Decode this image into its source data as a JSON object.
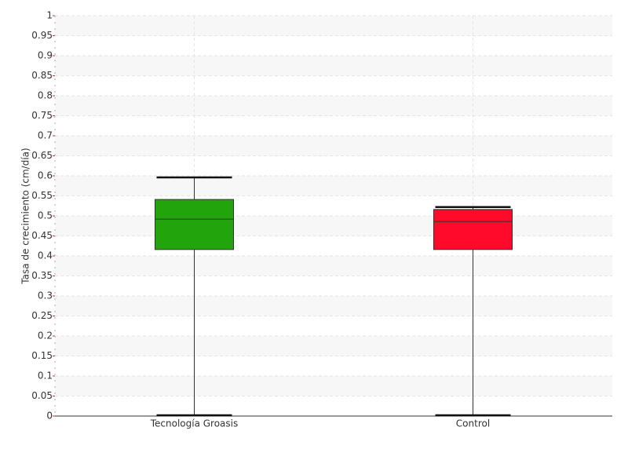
{
  "chart_data": {
    "type": "box",
    "ylabel": "Tasa de crecimiento (cm/día)",
    "categories": [
      "Tecnología Groasis",
      "Control"
    ],
    "boxes": [
      {
        "min": 0,
        "q1": 0.416,
        "median": 0.492,
        "q3": 0.541,
        "max": 0.596,
        "color": "#22a50c"
      },
      {
        "min": 0,
        "q1": 0.416,
        "median": 0.486,
        "q3": 0.516,
        "max": 0.522,
        "color": "#ff0a2a"
      }
    ],
    "ylim": [
      0,
      1
    ],
    "yticks": [
      0,
      0.05,
      0.1,
      0.15,
      0.2,
      0.25,
      0.3,
      0.35,
      0.4,
      0.45,
      0.5,
      0.55,
      0.6,
      0.65,
      0.7,
      0.75,
      0.8,
      0.85,
      0.9,
      0.95,
      1
    ],
    "grid": true
  }
}
